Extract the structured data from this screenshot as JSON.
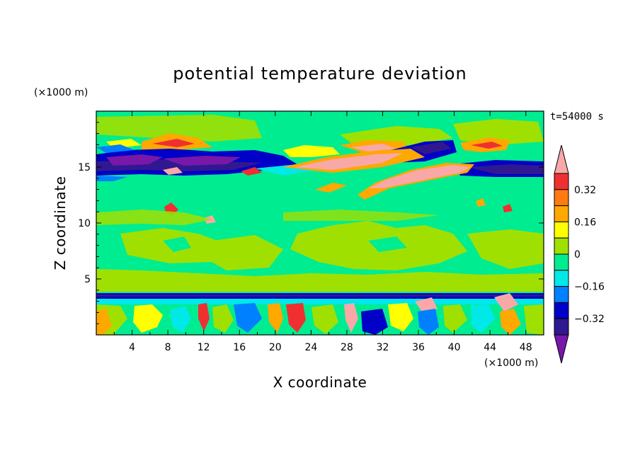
{
  "chart_data": {
    "type": "heatmap",
    "title": "potential temperature deviation",
    "xlabel": "X coordinate",
    "ylabel": "Z coordinate",
    "x_unit": "(×1000 m)",
    "y_unit": "(×1000 m)",
    "time_label": "t=54000 s",
    "xlim": [
      0,
      50
    ],
    "ylim": [
      0,
      20
    ],
    "x_ticks": [
      4,
      8,
      12,
      16,
      20,
      24,
      28,
      32,
      36,
      40,
      44,
      48
    ],
    "y_ticks": [
      5,
      10,
      15
    ],
    "colorbar": {
      "levels": [
        -0.4,
        -0.32,
        -0.24,
        -0.16,
        -0.08,
        0,
        0.08,
        0.16,
        0.24,
        0.32,
        0.4
      ],
      "labels": [
        "0.32",
        "0.16",
        "0",
        "−0.16",
        "−0.32"
      ],
      "label_values": [
        0.32,
        0.16,
        0,
        -0.16,
        -0.32
      ],
      "colors_high_to_low": [
        "#f9a8a8",
        "#f03030",
        "#ff7a10",
        "#ffa800",
        "#ffff00",
        "#a0e000",
        "#00ec90",
        "#00e8e8",
        "#0080ff",
        "#0000c8",
        "#301890",
        "#7818a8"
      ]
    },
    "regions": [
      {
        "band": "near-surface layer (0–3.5 km)",
        "pattern": "mixed warm/cold cells"
      },
      {
        "band": "inversion near 3.5 km",
        "value": -0.32
      },
      {
        "band": "mid troposphere (4–13 km)",
        "value": 0.0
      },
      {
        "band": "layer near 15 km",
        "value": -0.32
      },
      {
        "band": "warm filament 13–16 km, x 26–42",
        "value": 0.4
      },
      {
        "band": "upper layer 16–20 km",
        "value": 0.0
      }
    ]
  },
  "colors": {
    "background": "#ffffff",
    "axis": "#000000"
  }
}
